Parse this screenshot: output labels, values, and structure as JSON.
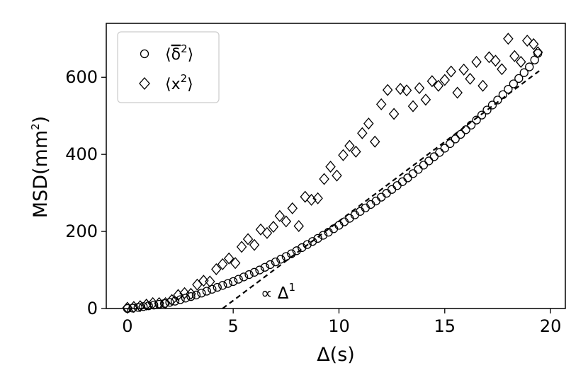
{
  "chart_data": {
    "type": "scatter",
    "xlabel": "Δ(s)",
    "ylabel_main": "MSD(mm",
    "ylabel_sup": "2",
    "ylabel_close": ")",
    "xlim": [
      -1.0,
      20.7
    ],
    "ylim": [
      0,
      740
    ],
    "x_ticks": [
      0,
      5,
      10,
      15,
      20
    ],
    "y_ticks": [
      0,
      200,
      400,
      600
    ],
    "x_tick_labels": [
      "0",
      "5",
      "10",
      "15",
      "20"
    ],
    "y_tick_labels": [
      "0",
      "200",
      "400",
      "600"
    ],
    "legend_position": "top-left",
    "series": [
      {
        "name": "⟨δ²⟩ (time-averaged, overline)",
        "legend_main": "⟨",
        "legend_delta": "δ",
        "legend_sup": "2",
        "legend_close": "⟩",
        "marker": "circle",
        "x": [
          0.0,
          0.25,
          0.5,
          0.75,
          1.0,
          1.25,
          1.5,
          1.75,
          2.0,
          2.25,
          2.5,
          2.75,
          3.0,
          3.25,
          3.5,
          3.75,
          4.0,
          4.25,
          4.5,
          4.75,
          5.0,
          5.25,
          5.5,
          5.75,
          6.0,
          6.25,
          6.5,
          6.75,
          7.0,
          7.25,
          7.5,
          7.75,
          8.0,
          8.25,
          8.5,
          8.75,
          9.0,
          9.25,
          9.5,
          9.75,
          10.0,
          10.25,
          10.5,
          10.75,
          11.0,
          11.25,
          11.5,
          11.75,
          12.0,
          12.25,
          12.5,
          12.75,
          13.0,
          13.25,
          13.5,
          13.75,
          14.0,
          14.25,
          14.5,
          14.75,
          15.0,
          15.25,
          15.5,
          15.75,
          16.0,
          16.25,
          16.5,
          16.75,
          17.0,
          17.25,
          17.5,
          17.75,
          18.0,
          18.25,
          18.5,
          18.75,
          19.0,
          19.25,
          19.4
        ],
        "y": [
          0,
          1,
          3,
          5,
          7,
          9,
          11,
          13,
          16,
          19,
          23,
          27,
          31,
          35,
          40,
          45,
          50,
          55,
          60,
          65,
          70,
          76,
          82,
          88,
          94,
          100,
          107,
          114,
          121,
          128,
          135,
          142,
          150,
          158,
          166,
          174,
          182,
          190,
          198,
          207,
          216,
          225,
          234,
          243,
          252,
          261,
          270,
          279,
          289,
          299,
          309,
          319,
          329,
          339,
          350,
          361,
          372,
          383,
          394,
          405,
          416,
          428,
          440,
          452,
          464,
          476,
          489,
          502,
          515,
          528,
          541,
          555,
          569,
          583,
          597,
          612,
          627,
          645,
          662
        ]
      },
      {
        "name": "⟨x²⟩",
        "legend_main": "⟨x",
        "legend_sup": "2",
        "legend_close": "⟩",
        "marker": "diamond",
        "x": [
          0.0,
          0.3,
          0.6,
          0.9,
          1.2,
          1.5,
          1.8,
          2.1,
          2.4,
          2.7,
          3.0,
          3.3,
          3.6,
          3.9,
          4.2,
          4.5,
          4.8,
          5.1,
          5.4,
          5.7,
          6.0,
          6.3,
          6.6,
          6.9,
          7.2,
          7.5,
          7.8,
          8.1,
          8.4,
          8.7,
          9.0,
          9.3,
          9.6,
          9.9,
          10.2,
          10.5,
          10.8,
          11.1,
          11.4,
          11.7,
          12.0,
          12.3,
          12.6,
          12.9,
          13.2,
          13.5,
          13.8,
          14.1,
          14.4,
          14.7,
          15.0,
          15.3,
          15.6,
          15.9,
          16.2,
          16.5,
          16.8,
          17.1,
          17.4,
          17.7,
          18.0,
          18.3,
          18.6,
          18.9,
          19.2,
          19.4
        ],
        "y": [
          2,
          4,
          6,
          10,
          14,
          14,
          14,
          22,
          35,
          40,
          38,
          62,
          72,
          70,
          102,
          115,
          130,
          118,
          160,
          180,
          165,
          205,
          196,
          212,
          240,
          226,
          260,
          214,
          290,
          282,
          286,
          336,
          368,
          345,
          398,
          422,
          407,
          455,
          480,
          433,
          530,
          567,
          505,
          570,
          566,
          525,
          572,
          542,
          590,
          578,
          593,
          615,
          560,
          620,
          596,
          640,
          578,
          652,
          643,
          621,
          700,
          655,
          640,
          695,
          686,
          665
        ]
      }
    ],
    "reference_line": {
      "style": "dashed",
      "x": [
        4.5,
        19.5
      ],
      "y": [
        0,
        618
      ],
      "label_prefix": "∝ Δ",
      "label_sup": "1"
    }
  }
}
